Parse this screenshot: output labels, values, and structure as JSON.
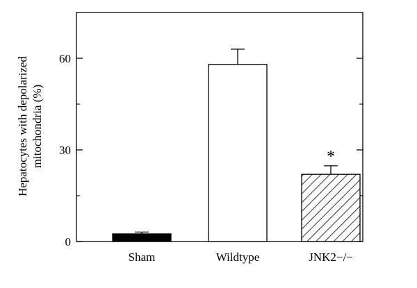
{
  "chart_data": {
    "type": "bar",
    "categories": [
      "Sham",
      "Wildtype",
      "JNK2−/−"
    ],
    "values": [
      2.5,
      58,
      22
    ],
    "errors": [
      0.6,
      5,
      2.8
    ],
    "fills": [
      "solid-black",
      "white",
      "hatched"
    ],
    "ylabel_lines": [
      "Hepatocytes with depolarized",
      "mitochondria (%)"
    ],
    "ylim": [
      0,
      75
    ],
    "yticks": [
      0,
      30,
      60
    ],
    "ytick_labels": [
      "0",
      "30",
      "60"
    ],
    "annotations": [
      {
        "category_index": 2,
        "text": "*"
      }
    ],
    "grid": false,
    "legend": "none"
  }
}
